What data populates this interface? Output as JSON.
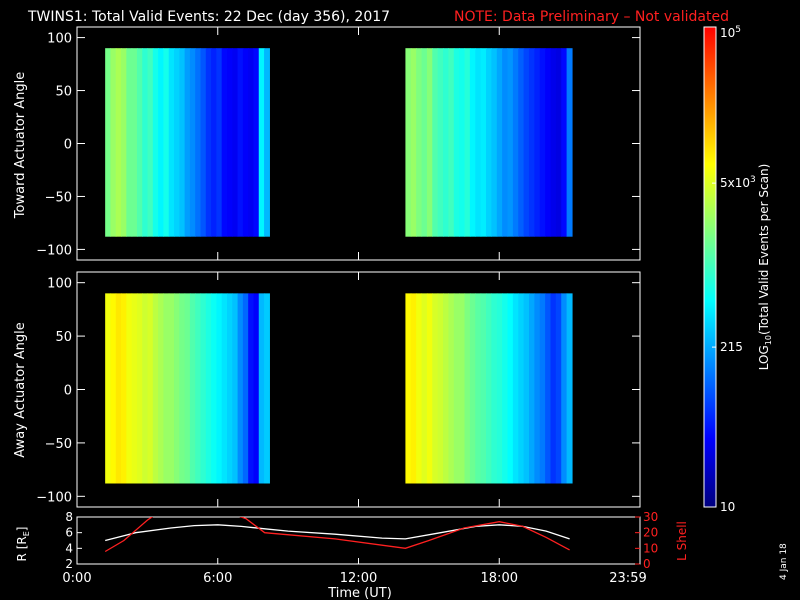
{
  "title": {
    "main": "TWINS1: Total Valid Events: 22 Dec (day 356), 2017",
    "note": "NOTE: Data Preliminary – Not validated"
  },
  "colors": {
    "background": "#000000",
    "axes": "#ffffff",
    "note": "#ff2020",
    "r_line": "#ffffff",
    "lshell_line": "#ff2020"
  },
  "datestamp": "4 Jan 18",
  "colorbar": {
    "scale": "log",
    "range": [
      10,
      100000
    ],
    "tick_labels": [
      "10",
      "215",
      "5x10^3",
      "10^5"
    ],
    "label": "LOG10(Total Valid Events per Scan)",
    "colormap": [
      "#00007f",
      "#0000ff",
      "#007fff",
      "#00ffff",
      "#7fff7f",
      "#ffff00",
      "#ff7f00",
      "#ff0000"
    ]
  },
  "chart_data": [
    {
      "type": "heatmap",
      "name": "toward",
      "ylabel": "Toward Actuator Angle",
      "ylim": [
        -110,
        110
      ],
      "yticks": [
        "100",
        "50",
        "0",
        "−50",
        "−100"
      ],
      "xlim": [
        0,
        24
      ],
      "angle_range": [
        -88,
        90
      ],
      "segments": [
        {
          "t_start": 1.2,
          "t_end": 8.2,
          "levels": [
            0.56,
            0.6,
            0.62,
            0.6,
            0.55,
            0.55,
            0.52,
            0.48,
            0.5,
            0.45,
            0.42,
            0.45,
            0.4,
            0.38,
            0.36,
            0.32,
            0.3,
            0.27,
            0.24,
            0.2,
            0.18,
            0.2,
            0.15,
            0.14,
            0.13,
            0.16,
            0.14,
            0.13,
            0.15,
            0.42,
            0.35
          ]
        },
        {
          "t_start": 14.0,
          "t_end": 21.1,
          "levels": [
            0.58,
            0.6,
            0.57,
            0.55,
            0.58,
            0.52,
            0.5,
            0.48,
            0.5,
            0.46,
            0.45,
            0.47,
            0.42,
            0.4,
            0.41,
            0.38,
            0.36,
            0.33,
            0.3,
            0.31,
            0.28,
            0.25,
            0.22,
            0.2,
            0.18,
            0.16,
            0.14,
            0.12,
            0.11,
            0.15,
            0.28
          ]
        }
      ]
    },
    {
      "type": "heatmap",
      "name": "away",
      "ylabel": "Away Actuator Angle",
      "ylim": [
        -110,
        110
      ],
      "yticks": [
        "100",
        "50",
        "0",
        "−50",
        "−100"
      ],
      "xlim": [
        0,
        24
      ],
      "angle_range": [
        -88,
        90
      ],
      "segments": [
        {
          "t_start": 1.2,
          "t_end": 8.2,
          "levels": [
            0.7,
            0.72,
            0.74,
            0.73,
            0.7,
            0.69,
            0.68,
            0.66,
            0.67,
            0.64,
            0.62,
            0.6,
            0.6,
            0.58,
            0.56,
            0.55,
            0.52,
            0.5,
            0.48,
            0.46,
            0.44,
            0.42,
            0.4,
            0.38,
            0.36,
            0.3,
            0.26,
            0.16,
            0.14,
            0.35,
            0.37
          ]
        },
        {
          "t_start": 14.0,
          "t_end": 21.1,
          "levels": [
            0.72,
            0.73,
            0.7,
            0.68,
            0.7,
            0.67,
            0.66,
            0.64,
            0.62,
            0.6,
            0.6,
            0.57,
            0.55,
            0.53,
            0.52,
            0.5,
            0.48,
            0.47,
            0.45,
            0.43,
            0.4,
            0.38,
            0.36,
            0.33,
            0.3,
            0.28,
            0.24,
            0.2,
            0.22,
            0.3,
            0.35
          ]
        }
      ]
    },
    {
      "type": "line",
      "name": "orbit",
      "ylabel_left": "R [RE]",
      "ylabel_right": "L Shell",
      "xlabel": "Time (UT)",
      "xlim": [
        0,
        24
      ],
      "xticks": [
        "0:00",
        "6:00",
        "12:00",
        "18:00",
        "23:59"
      ],
      "ylim_left": [
        2,
        8
      ],
      "yticks_left": [
        "2",
        "4",
        "6",
        "8"
      ],
      "ylim_right": [
        0,
        30
      ],
      "yticks_right": [
        "0",
        "10",
        "20",
        "30"
      ],
      "series": [
        {
          "axis": "left",
          "color": "#ffffff",
          "x": [
            1.2,
            2.5,
            4.0,
            5.0,
            6.0,
            7.0,
            8.0,
            9.0,
            11.0,
            13.0,
            14.0,
            15.5,
            17.0,
            18.0,
            19.0,
            20.0,
            21.0
          ],
          "y": [
            5.0,
            6.0,
            6.6,
            6.9,
            7.0,
            6.8,
            6.5,
            6.2,
            5.8,
            5.3,
            5.2,
            6.0,
            6.8,
            7.0,
            6.8,
            6.2,
            5.2
          ]
        },
        {
          "axis": "right",
          "color": "#ff2020",
          "x": [
            1.2,
            2.0,
            3.0,
            3.3,
            6.8,
            7.2,
            8.0,
            11.0,
            14.0,
            15.0,
            16.5,
            18.0,
            19.0,
            20.0,
            21.0
          ],
          "y": [
            8,
            15,
            28,
            31,
            31,
            29,
            20,
            16,
            10,
            15,
            23,
            27,
            24,
            17,
            9
          ]
        }
      ]
    }
  ]
}
